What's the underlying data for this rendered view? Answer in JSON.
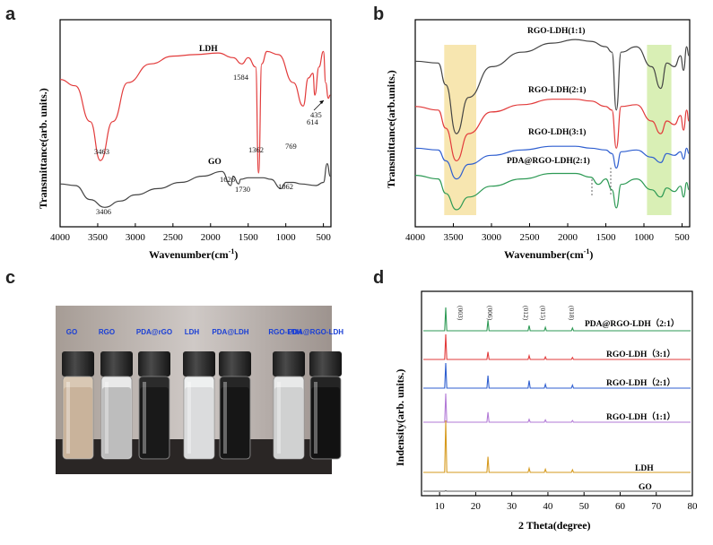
{
  "panels": {
    "a": {
      "label": "a",
      "ylabel": "Transmittance(arb. units.)",
      "xlabel_main": "Wavenumber(cm",
      "xlabel_sup": "-1",
      "xlabel_end": ")",
      "xticks": [
        "4000",
        "3500",
        "3000",
        "2500",
        "2000",
        "1500",
        "1000",
        "500"
      ],
      "series": [
        {
          "name": "LDH",
          "color": "#e23b3b"
        },
        {
          "name": "GO",
          "color": "#444444"
        }
      ],
      "annotations": [
        "3463",
        "1584",
        "1362",
        "769",
        "614",
        "435",
        "3406",
        "1626",
        "1730",
        "1062"
      ]
    },
    "b": {
      "label": "b",
      "ylabel": "Transmittance(arb.units.)",
      "xlabel_main": "Wavenumber(cm",
      "xlabel_sup": "-1",
      "xlabel_end": ")",
      "xticks": [
        "4000",
        "3500",
        "3000",
        "2500",
        "2000",
        "1500",
        "1000",
        "500"
      ],
      "series": [
        {
          "name": "RGO-LDH(1:1)",
          "color": "#444444"
        },
        {
          "name": "RGO-LDH(2:1)",
          "color": "#e23b3b"
        },
        {
          "name": "RGO-LDH(3:1)",
          "color": "#2f5fd0"
        },
        {
          "name": "PDA@RGO-LDH(2:1)",
          "color": "#2e9a55"
        }
      ],
      "highlight_colors": [
        "#f7e6b0",
        "#d9efb5"
      ]
    },
    "c": {
      "label": "c",
      "vials": [
        "GO",
        "RGO",
        "PDA@rGO",
        "LDH",
        "PDA@LDH",
        "RGO-LDH",
        "PDA@RGO-LDH"
      ]
    },
    "d": {
      "label": "d",
      "ylabel": "Indensity(arb. units.)",
      "xlabel": "2 Theta(degree)",
      "xticks": [
        "10",
        "20",
        "30",
        "40",
        "50",
        "60",
        "70",
        "80"
      ],
      "peaks": [
        "(003)",
        "(006)",
        "(012)",
        "(015)",
        "(018)"
      ],
      "series": [
        {
          "name": "PDA@RGO-LDH（2:1）",
          "color": "#2e9a55"
        },
        {
          "name": "RGO-LDH（3:1）",
          "color": "#e23b3b"
        },
        {
          "name": "RGO-LDH（2:1）",
          "color": "#2f5fd0"
        },
        {
          "name": "RGO-LDH（1:1）",
          "color": "#b27ad6"
        },
        {
          "name": "LDH",
          "color": "#d69a1e"
        },
        {
          "name": "GO",
          "color": "#555555"
        }
      ]
    }
  },
  "chart_data": [
    {
      "type": "line",
      "xlabel": "Wavenumber(cm-1)",
      "ylabel": "Transmittance(arb. units.)",
      "xlim": [
        4000,
        400
      ],
      "series": [
        {
          "name": "LDH",
          "x": [
            4000,
            3800,
            3600,
            3463,
            3300,
            3100,
            2800,
            2500,
            2200,
            1900,
            1700,
            1584,
            1500,
            1400,
            1362,
            1320,
            1250,
            1100,
            900,
            769,
            700,
            640,
            614,
            560,
            500,
            470,
            435,
            410
          ],
          "y": [
            0.72,
            0.68,
            0.45,
            0.2,
            0.45,
            0.7,
            0.82,
            0.87,
            0.88,
            0.89,
            0.86,
            0.82,
            0.86,
            0.8,
            0.12,
            0.82,
            0.9,
            0.88,
            0.7,
            0.55,
            0.73,
            0.76,
            0.62,
            0.8,
            0.9,
            0.7,
            0.6,
            0.62
          ]
        },
        {
          "name": "GO",
          "x": [
            4000,
            3800,
            3600,
            3406,
            3200,
            3000,
            2700,
            2400,
            2100,
            1850,
            1700,
            1626,
            1600,
            1730,
            1500,
            1300,
            1200,
            1062,
            1000,
            900,
            800,
            600,
            500,
            450,
            410
          ],
          "y": [
            0.05,
            0.04,
            -0.05,
            -0.1,
            -0.06,
            -0.02,
            0.02,
            0.06,
            0.1,
            0.13,
            0.1,
            0.05,
            0.08,
            0.04,
            0.09,
            0.09,
            0.08,
            0.02,
            0.06,
            0.06,
            0.05,
            0.04,
            0.06,
            0.18,
            0.1
          ]
        }
      ]
    },
    {
      "type": "line",
      "xlabel": "Wavenumber(cm-1)",
      "ylabel": "Transmittance(arb.units.)",
      "xlim": [
        4000,
        400
      ],
      "series": [
        {
          "name": "RGO-LDH(1:1)",
          "x": [
            4000,
            3700,
            3600,
            3460,
            3300,
            3000,
            2600,
            2200,
            1900,
            1700,
            1500,
            1420,
            1362,
            1300,
            1100,
            900,
            780,
            700,
            600,
            520,
            480,
            440,
            410
          ],
          "y": [
            0.85,
            0.84,
            0.72,
            0.45,
            0.65,
            0.82,
            0.9,
            0.95,
            0.97,
            0.96,
            0.93,
            0.9,
            0.58,
            0.9,
            0.93,
            0.82,
            0.7,
            0.84,
            0.82,
            0.88,
            0.8,
            0.93,
            0.88
          ]
        },
        {
          "name": "RGO-LDH(2:1)",
          "x": [
            4000,
            3700,
            3600,
            3460,
            3300,
            3000,
            2600,
            2200,
            1900,
            1700,
            1500,
            1420,
            1362,
            1300,
            1100,
            900,
            780,
            700,
            600,
            520,
            480,
            440,
            410
          ],
          "y": [
            0.6,
            0.58,
            0.48,
            0.3,
            0.45,
            0.57,
            0.61,
            0.64,
            0.64,
            0.63,
            0.6,
            0.58,
            0.37,
            0.6,
            0.61,
            0.52,
            0.45,
            0.52,
            0.5,
            0.55,
            0.47,
            0.58,
            0.52
          ]
        },
        {
          "name": "RGO-LDH(3:1)",
          "x": [
            4000,
            3700,
            3600,
            3460,
            3300,
            3000,
            2600,
            2200,
            1900,
            1700,
            1500,
            1420,
            1362,
            1300,
            1100,
            900,
            780,
            700,
            600,
            520,
            480,
            440,
            410
          ],
          "y": [
            0.37,
            0.36,
            0.3,
            0.2,
            0.28,
            0.33,
            0.36,
            0.38,
            0.38,
            0.37,
            0.36,
            0.34,
            0.26,
            0.35,
            0.36,
            0.32,
            0.29,
            0.34,
            0.33,
            0.35,
            0.31,
            0.37,
            0.34
          ]
        },
        {
          "name": "PDA@RGO-LDH(2:1)",
          "x": [
            4000,
            3700,
            3600,
            3460,
            3300,
            3000,
            2600,
            2200,
            1900,
            1700,
            1600,
            1500,
            1420,
            1362,
            1300,
            1100,
            900,
            780,
            700,
            600,
            520,
            480,
            440,
            410
          ],
          "y": [
            0.22,
            0.2,
            0.12,
            0.03,
            0.1,
            0.16,
            0.2,
            0.23,
            0.23,
            0.21,
            0.17,
            0.2,
            0.14,
            0.04,
            0.17,
            0.2,
            0.14,
            0.1,
            0.15,
            0.13,
            0.16,
            0.1,
            0.18,
            0.14
          ]
        }
      ]
    },
    {
      "type": "line",
      "xlabel": "2 Theta(degree)",
      "ylabel": "Indensity(arb. units.)",
      "xlim": [
        5,
        80
      ],
      "peaks_2theta": [
        11.7,
        23.4,
        34.8,
        39.3,
        46.8
      ],
      "series": [
        {
          "name": "PDA@RGO-LDH (2:1)",
          "peak_heights": [
            1.0,
            0.45,
            0.22,
            0.15,
            0.12
          ]
        },
        {
          "name": "RGO-LDH (3:1)",
          "peak_heights": [
            1.0,
            0.3,
            0.15,
            0.1,
            0.08
          ]
        },
        {
          "name": "RGO-LDH (2:1)",
          "peak_heights": [
            1.0,
            0.5,
            0.3,
            0.15,
            0.12
          ]
        },
        {
          "name": "RGO-LDH (1:1)",
          "peak_heights": [
            1.0,
            0.35,
            0.1,
            0.08,
            0.06
          ]
        },
        {
          "name": "LDH",
          "peak_heights": [
            1.0,
            0.3,
            0.08,
            0.06,
            0.05
          ]
        },
        {
          "name": "GO",
          "peak_heights": [
            0.05,
            0.0,
            0.0,
            0.0,
            0.0
          ]
        }
      ]
    }
  ]
}
